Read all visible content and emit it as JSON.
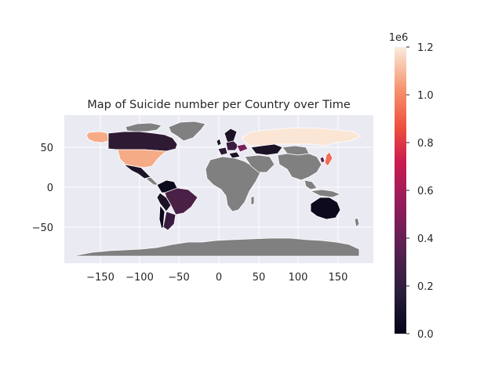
{
  "title": "Map of Suicide number per Country over Time",
  "colorbar": {
    "exponent_label": "1e6",
    "ticks": [
      "0.0",
      "0.2",
      "0.4",
      "0.6",
      "0.8",
      "1.0",
      "1.2"
    ],
    "min": 0.0,
    "max": 1.2,
    "colormap": "rocket"
  },
  "map": {
    "x_ticks": [
      "−150",
      "−100",
      "−50",
      "0",
      "50",
      "100",
      "150"
    ],
    "y_ticks": [
      "50",
      "0",
      "−50"
    ],
    "xlim": [
      -190,
      190
    ],
    "ylim": [
      -95,
      90
    ],
    "no_data_color": "#808080",
    "background_color": "#eaeaf2",
    "border_color": "#ffffff"
  },
  "chart_data": {
    "type": "choropleth",
    "value_scale": "1e6",
    "regions": [
      {
        "name": "United States",
        "value": 1.03
      },
      {
        "name": "Alaska",
        "value": 1.03
      },
      {
        "name": "Canada",
        "value": 0.12
      },
      {
        "name": "Mexico",
        "value": 0.08
      },
      {
        "name": "Brazil",
        "value": 0.23
      },
      {
        "name": "Colombia",
        "value": 0.07
      },
      {
        "name": "Argentina",
        "value": 0.1
      },
      {
        "name": "Chile",
        "value": 0.05
      },
      {
        "name": "Russia",
        "value": 1.19
      },
      {
        "name": "Kazakhstan",
        "value": 0.1
      },
      {
        "name": "Ukraine",
        "value": 0.38
      },
      {
        "name": "Japan",
        "value": 0.93
      },
      {
        "name": "South Korea",
        "value": 0.35
      },
      {
        "name": "Australia",
        "value": 0.05
      },
      {
        "name": "France",
        "value": 0.15
      },
      {
        "name": "Germany",
        "value": 0.2
      },
      {
        "name": "United Kingdom",
        "value": 0.1
      }
    ]
  }
}
